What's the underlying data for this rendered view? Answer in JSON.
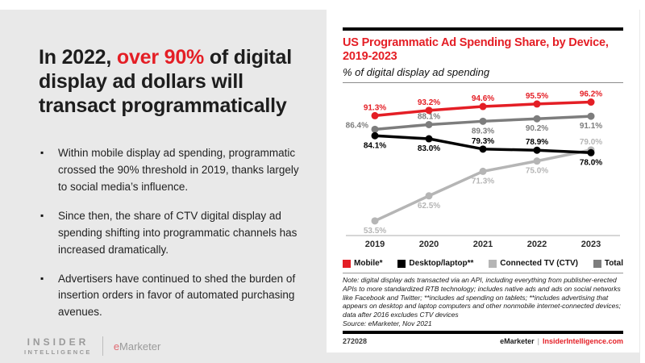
{
  "colors": {
    "accent_red": "#e41e25",
    "panel_gray": "#e9e9e9"
  },
  "left_panel": {
    "headline": {
      "pre": "In 2022, ",
      "highlight": "over 90%",
      "post": " of digital display ad dollars will transact programmatically"
    },
    "bullets": [
      "Within mobile display ad spending, programmatic crossed the 90% threshold in 2019, thanks largely to social media’s influence.",
      "Since then, the share of CTV digital display ad spending shifting into programmatic channels has increased dramatically.",
      "Advertisers have continued to shed the burden of insertion orders in favor of automated purchasing avenues."
    ],
    "logo": {
      "line1": "INSIDER",
      "line2": "INTELLIGENCE",
      "brand_e": "e",
      "brand_rest": "Marketer"
    }
  },
  "chart_panel": {
    "title": "US Programmatic Ad Spending Share, by Device, 2019-2023",
    "subtitle": "% of digital display ad spending",
    "note": "Note: digital display ads transacted via an API, including everything from publisher-erected APIs to more standardized RTB technology; includes native ads and ads on social networks like Facebook and Twitter; **includes ad spending on tablets; **includes advertising that appears on desktop and laptop computers and other nonmobile internet-connected devices; data after 2016 excludes CTV devices",
    "source": "Source: eMarketer, Nov 2021",
    "chart_id": "272028",
    "footer": {
      "brand": "eMarketer",
      "separator": "|",
      "site": "InsiderIntelligence.com"
    }
  },
  "chart_data": {
    "type": "line",
    "title": "US Programmatic Ad Spending Share, by Device, 2019-2023",
    "subtitle": "% of digital display ad spending",
    "categories": [
      "2019",
      "2020",
      "2021",
      "2022",
      "2023"
    ],
    "series": [
      {
        "name": "Mobile*",
        "color": "#e41e25",
        "values": [
          91.3,
          93.2,
          94.6,
          95.5,
          96.2
        ]
      },
      {
        "name": "Desktop/laptop**",
        "color": "#000000",
        "values": [
          84.1,
          83.0,
          79.3,
          78.9,
          78.0
        ]
      },
      {
        "name": "Connected TV (CTV)",
        "color": "#b5b5b5",
        "values": [
          53.5,
          62.5,
          71.3,
          75.0,
          79.0
        ]
      },
      {
        "name": "Total",
        "color": "#7d7d7d",
        "values": [
          86.4,
          88.1,
          89.3,
          90.2,
          91.1
        ]
      }
    ],
    "unit": "%",
    "ylim": [
      50,
      100
    ],
    "grid": false,
    "legend_position": "bottom",
    "value_labels": true
  }
}
